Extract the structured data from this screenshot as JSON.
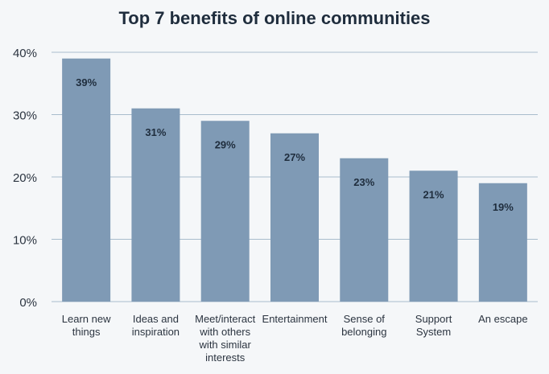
{
  "chart_data": {
    "type": "bar",
    "title": "Top 7 benefits of online communities",
    "categories": [
      "Learn new things",
      "Ideas and inspiration",
      "Meet/interact with others with similar interests",
      "Entertainment",
      "Sense of belonging",
      "Support System",
      "An escape"
    ],
    "values": [
      39,
      31,
      29,
      27,
      23,
      21,
      19
    ],
    "value_labels": [
      "39%",
      "31%",
      "29%",
      "27%",
      "23%",
      "21%",
      "19%"
    ],
    "color": "#7f9ab5",
    "ylim": [
      0,
      40
    ],
    "yticks": [
      {
        "value": 0,
        "label": "0%"
      },
      {
        "value": 10,
        "label": "10%"
      },
      {
        "value": 20,
        "label": "20%"
      },
      {
        "value": 30,
        "label": "30%"
      },
      {
        "value": 40,
        "label": "40%"
      }
    ],
    "grid": true
  }
}
